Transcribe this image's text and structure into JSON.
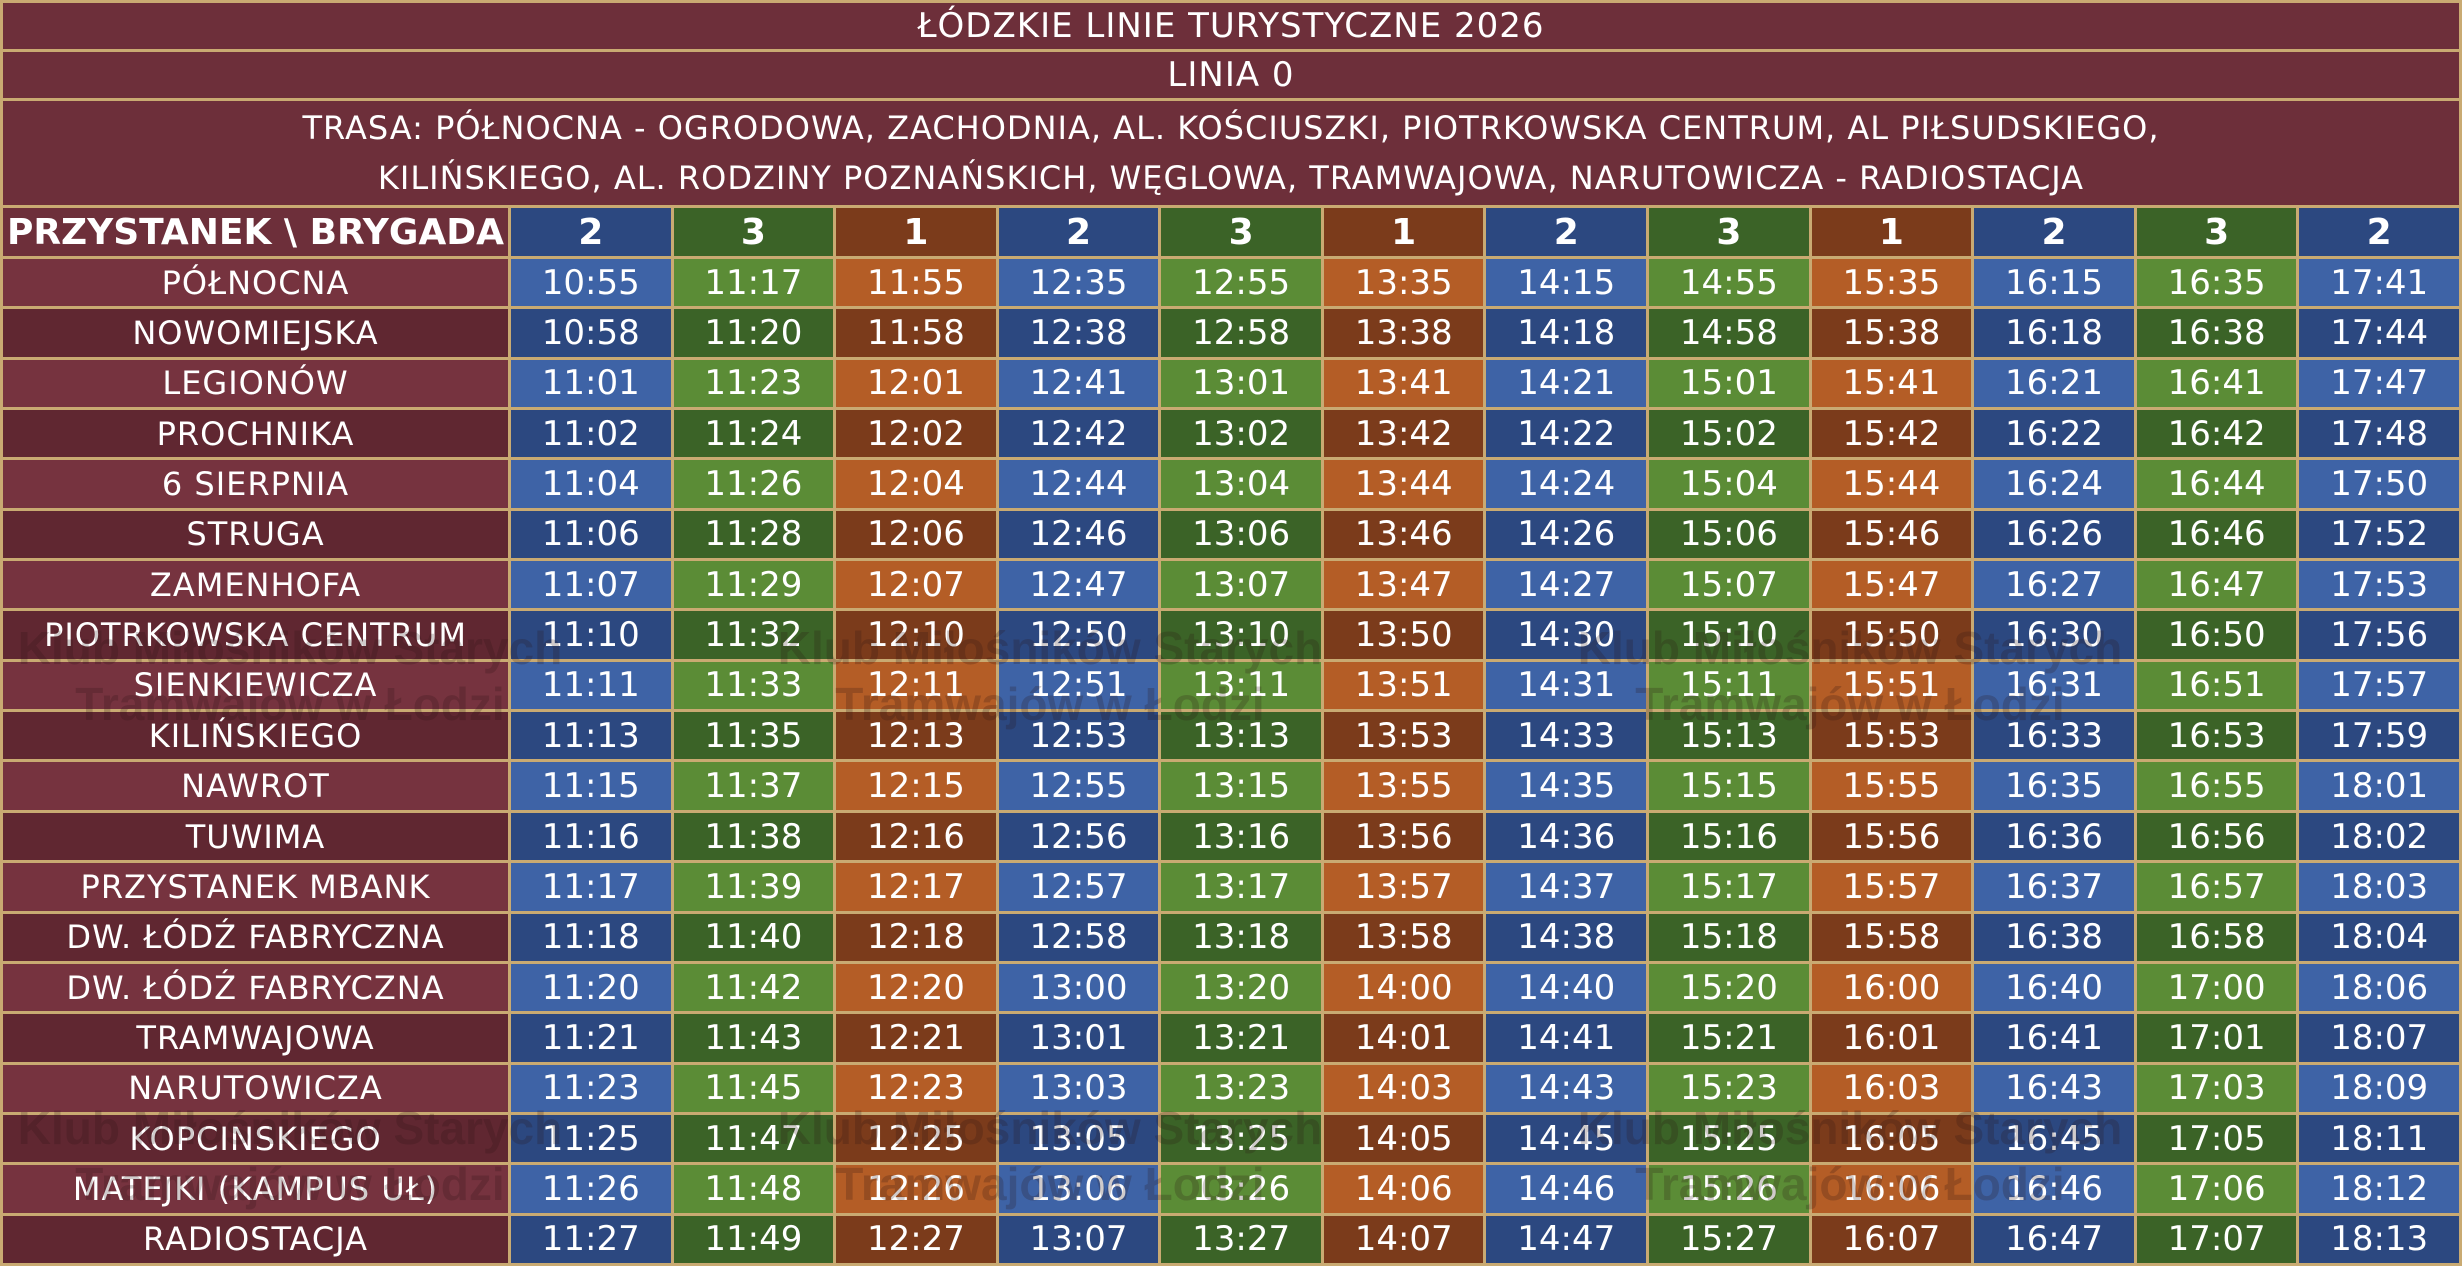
{
  "header": {
    "title": "ŁÓDZKIE LINIE TURYSTYCZNE 2026",
    "line": "LINIA 0",
    "route": [
      "TRASA: PÓŁNOCNA - OGRODOWA, ZACHODNIA, AL. KOŚCIUSZKI, PIOTRKOWSKA CENTRUM, AL PIŁSUDSKIEGO,",
      "KILIŃSKIEGO, AL. RODZINY POZNAŃSKICH, WĘGLOWA, TRAMWAJOWA, NARUTOWICZA - RADIOSTACJA"
    ]
  },
  "table": {
    "corner": "PRZYSTANEK \\ BRYGADA",
    "brigades": [
      2,
      3,
      1,
      2,
      3,
      1,
      2,
      3,
      1,
      2,
      3,
      2
    ],
    "rows": [
      {
        "stop": "PÓŁNOCNA",
        "times": [
          "10:55",
          "11:17",
          "11:55",
          "12:35",
          "12:55",
          "13:35",
          "14:15",
          "14:55",
          "15:35",
          "16:15",
          "16:35",
          "17:41"
        ]
      },
      {
        "stop": "NOWOMIEJSKA",
        "times": [
          "10:58",
          "11:20",
          "11:58",
          "12:38",
          "12:58",
          "13:38",
          "14:18",
          "14:58",
          "15:38",
          "16:18",
          "16:38",
          "17:44"
        ]
      },
      {
        "stop": "LEGIONÓW",
        "times": [
          "11:01",
          "11:23",
          "12:01",
          "12:41",
          "13:01",
          "13:41",
          "14:21",
          "15:01",
          "15:41",
          "16:21",
          "16:41",
          "17:47"
        ]
      },
      {
        "stop": "PROCHNIKA",
        "times": [
          "11:02",
          "11:24",
          "12:02",
          "12:42",
          "13:02",
          "13:42",
          "14:22",
          "15:02",
          "15:42",
          "16:22",
          "16:42",
          "17:48"
        ]
      },
      {
        "stop": "6 SIERPNIA",
        "times": [
          "11:04",
          "11:26",
          "12:04",
          "12:44",
          "13:04",
          "13:44",
          "14:24",
          "15:04",
          "15:44",
          "16:24",
          "16:44",
          "17:50"
        ]
      },
      {
        "stop": "STRUGA",
        "times": [
          "11:06",
          "11:28",
          "12:06",
          "12:46",
          "13:06",
          "13:46",
          "14:26",
          "15:06",
          "15:46",
          "16:26",
          "16:46",
          "17:52"
        ]
      },
      {
        "stop": "ZAMENHOFA",
        "times": [
          "11:07",
          "11:29",
          "12:07",
          "12:47",
          "13:07",
          "13:47",
          "14:27",
          "15:07",
          "15:47",
          "16:27",
          "16:47",
          "17:53"
        ]
      },
      {
        "stop": "PIOTRKOWSKA CENTRUM",
        "times": [
          "11:10",
          "11:32",
          "12:10",
          "12:50",
          "13:10",
          "13:50",
          "14:30",
          "15:10",
          "15:50",
          "16:30",
          "16:50",
          "17:56"
        ]
      },
      {
        "stop": "SIENKIEWICZA",
        "times": [
          "11:11",
          "11:33",
          "12:11",
          "12:51",
          "13:11",
          "13:51",
          "14:31",
          "15:11",
          "15:51",
          "16:31",
          "16:51",
          "17:57"
        ]
      },
      {
        "stop": "KILIŃSKIEGO",
        "times": [
          "11:13",
          "11:35",
          "12:13",
          "12:53",
          "13:13",
          "13:53",
          "14:33",
          "15:13",
          "15:53",
          "16:33",
          "16:53",
          "17:59"
        ]
      },
      {
        "stop": "NAWROT",
        "times": [
          "11:15",
          "11:37",
          "12:15",
          "12:55",
          "13:15",
          "13:55",
          "14:35",
          "15:15",
          "15:55",
          "16:35",
          "16:55",
          "18:01"
        ]
      },
      {
        "stop": "TUWIMA",
        "times": [
          "11:16",
          "11:38",
          "12:16",
          "12:56",
          "13:16",
          "13:56",
          "14:36",
          "15:16",
          "15:56",
          "16:36",
          "16:56",
          "18:02"
        ]
      },
      {
        "stop": "PRZYSTANEK MBANK",
        "times": [
          "11:17",
          "11:39",
          "12:17",
          "12:57",
          "13:17",
          "13:57",
          "14:37",
          "15:17",
          "15:57",
          "16:37",
          "16:57",
          "18:03"
        ]
      },
      {
        "stop": "DW. ŁÓDŹ FABRYCZNA",
        "times": [
          "11:18",
          "11:40",
          "12:18",
          "12:58",
          "13:18",
          "13:58",
          "14:38",
          "15:18",
          "15:58",
          "16:38",
          "16:58",
          "18:04"
        ]
      },
      {
        "stop": "DW. ŁÓDŹ FABRYCZNA",
        "times": [
          "11:20",
          "11:42",
          "12:20",
          "13:00",
          "13:20",
          "14:00",
          "14:40",
          "15:20",
          "16:00",
          "16:40",
          "17:00",
          "18:06"
        ]
      },
      {
        "stop": "TRAMWAJOWA",
        "times": [
          "11:21",
          "11:43",
          "12:21",
          "13:01",
          "13:21",
          "14:01",
          "14:41",
          "15:21",
          "16:01",
          "16:41",
          "17:01",
          "18:07"
        ]
      },
      {
        "stop": "NARUTOWICZA",
        "times": [
          "11:23",
          "11:45",
          "12:23",
          "13:03",
          "13:23",
          "14:03",
          "14:43",
          "15:23",
          "16:03",
          "16:43",
          "17:03",
          "18:09"
        ]
      },
      {
        "stop": "KOPCINSKIEGO",
        "times": [
          "11:25",
          "11:47",
          "12:25",
          "13:05",
          "13:25",
          "14:05",
          "14:45",
          "15:25",
          "16:05",
          "16:45",
          "17:05",
          "18:11"
        ]
      },
      {
        "stop": "MATEJKI (KAMPUS UŁ)",
        "times": [
          "11:26",
          "11:48",
          "12:26",
          "13:06",
          "13:26",
          "14:06",
          "14:46",
          "15:26",
          "16:06",
          "16:46",
          "17:06",
          "18:12"
        ]
      },
      {
        "stop": "RADIOSTACJA",
        "times": [
          "11:27",
          "11:49",
          "12:27",
          "13:07",
          "13:27",
          "14:07",
          "14:47",
          "15:27",
          "16:07",
          "16:47",
          "17:07",
          "18:13"
        ]
      }
    ]
  },
  "watermark": [
    "Klub Miłośników Starych",
    "Tramwajów w Łodzi"
  ]
}
